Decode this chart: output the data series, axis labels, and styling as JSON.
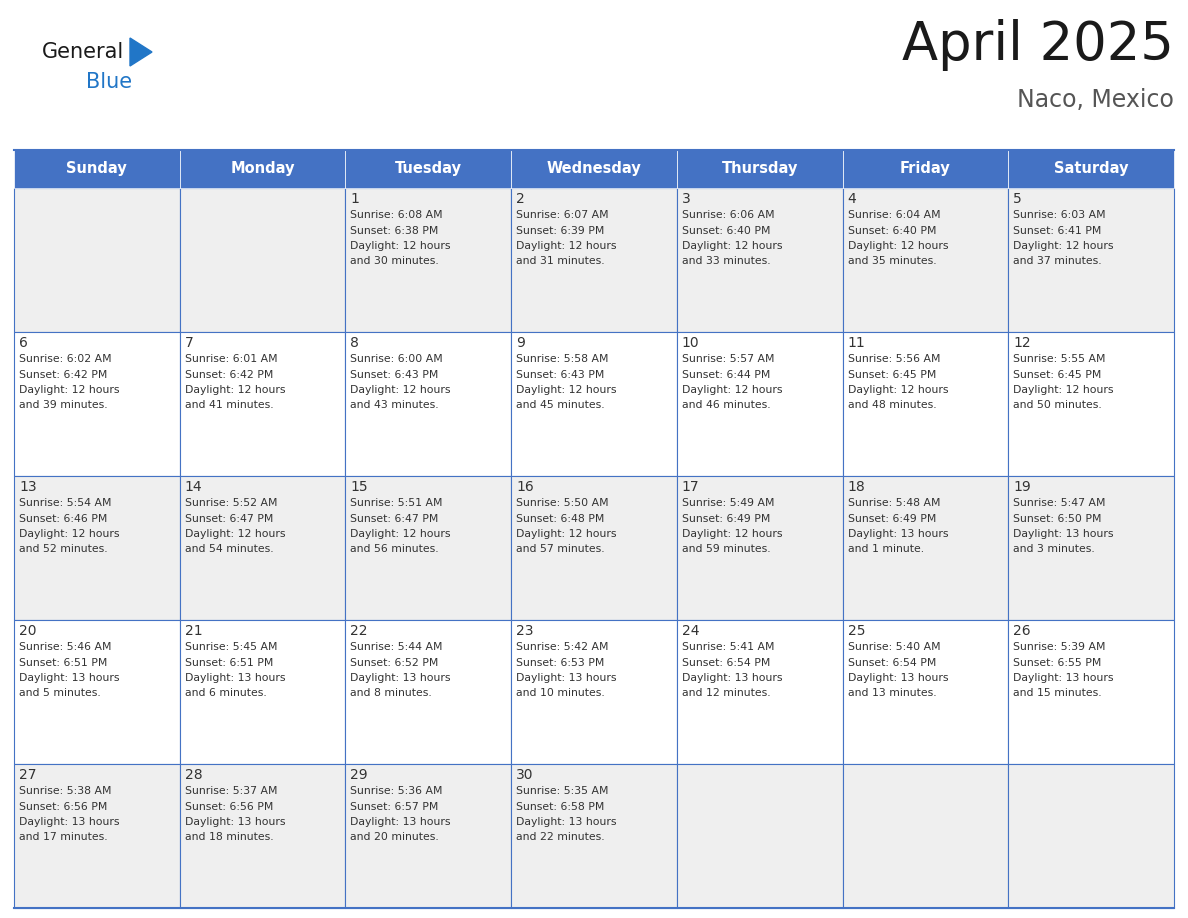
{
  "title": "April 2025",
  "subtitle": "Naco, Mexico",
  "header_color": "#4472C4",
  "header_text_color": "#FFFFFF",
  "grid_line_color": "#4472C4",
  "text_color": "#333333",
  "days_of_week": [
    "Sunday",
    "Monday",
    "Tuesday",
    "Wednesday",
    "Thursday",
    "Friday",
    "Saturday"
  ],
  "logo_general_color": "#1a1a1a",
  "logo_blue_color": "#2176C7",
  "logo_triangle_color": "#2176C7",
  "title_color": "#1a1a1a",
  "subtitle_color": "#555555",
  "row_bg_even": "#FFFFFF",
  "row_bg_odd": "#EFEFEF",
  "calendar_data": [
    [
      {
        "day": "",
        "info": ""
      },
      {
        "day": "",
        "info": ""
      },
      {
        "day": "1",
        "info": "Sunrise: 6:08 AM\nSunset: 6:38 PM\nDaylight: 12 hours\nand 30 minutes."
      },
      {
        "day": "2",
        "info": "Sunrise: 6:07 AM\nSunset: 6:39 PM\nDaylight: 12 hours\nand 31 minutes."
      },
      {
        "day": "3",
        "info": "Sunrise: 6:06 AM\nSunset: 6:40 PM\nDaylight: 12 hours\nand 33 minutes."
      },
      {
        "day": "4",
        "info": "Sunrise: 6:04 AM\nSunset: 6:40 PM\nDaylight: 12 hours\nand 35 minutes."
      },
      {
        "day": "5",
        "info": "Sunrise: 6:03 AM\nSunset: 6:41 PM\nDaylight: 12 hours\nand 37 minutes."
      }
    ],
    [
      {
        "day": "6",
        "info": "Sunrise: 6:02 AM\nSunset: 6:42 PM\nDaylight: 12 hours\nand 39 minutes."
      },
      {
        "day": "7",
        "info": "Sunrise: 6:01 AM\nSunset: 6:42 PM\nDaylight: 12 hours\nand 41 minutes."
      },
      {
        "day": "8",
        "info": "Sunrise: 6:00 AM\nSunset: 6:43 PM\nDaylight: 12 hours\nand 43 minutes."
      },
      {
        "day": "9",
        "info": "Sunrise: 5:58 AM\nSunset: 6:43 PM\nDaylight: 12 hours\nand 45 minutes."
      },
      {
        "day": "10",
        "info": "Sunrise: 5:57 AM\nSunset: 6:44 PM\nDaylight: 12 hours\nand 46 minutes."
      },
      {
        "day": "11",
        "info": "Sunrise: 5:56 AM\nSunset: 6:45 PM\nDaylight: 12 hours\nand 48 minutes."
      },
      {
        "day": "12",
        "info": "Sunrise: 5:55 AM\nSunset: 6:45 PM\nDaylight: 12 hours\nand 50 minutes."
      }
    ],
    [
      {
        "day": "13",
        "info": "Sunrise: 5:54 AM\nSunset: 6:46 PM\nDaylight: 12 hours\nand 52 minutes."
      },
      {
        "day": "14",
        "info": "Sunrise: 5:52 AM\nSunset: 6:47 PM\nDaylight: 12 hours\nand 54 minutes."
      },
      {
        "day": "15",
        "info": "Sunrise: 5:51 AM\nSunset: 6:47 PM\nDaylight: 12 hours\nand 56 minutes."
      },
      {
        "day": "16",
        "info": "Sunrise: 5:50 AM\nSunset: 6:48 PM\nDaylight: 12 hours\nand 57 minutes."
      },
      {
        "day": "17",
        "info": "Sunrise: 5:49 AM\nSunset: 6:49 PM\nDaylight: 12 hours\nand 59 minutes."
      },
      {
        "day": "18",
        "info": "Sunrise: 5:48 AM\nSunset: 6:49 PM\nDaylight: 13 hours\nand 1 minute."
      },
      {
        "day": "19",
        "info": "Sunrise: 5:47 AM\nSunset: 6:50 PM\nDaylight: 13 hours\nand 3 minutes."
      }
    ],
    [
      {
        "day": "20",
        "info": "Sunrise: 5:46 AM\nSunset: 6:51 PM\nDaylight: 13 hours\nand 5 minutes."
      },
      {
        "day": "21",
        "info": "Sunrise: 5:45 AM\nSunset: 6:51 PM\nDaylight: 13 hours\nand 6 minutes."
      },
      {
        "day": "22",
        "info": "Sunrise: 5:44 AM\nSunset: 6:52 PM\nDaylight: 13 hours\nand 8 minutes."
      },
      {
        "day": "23",
        "info": "Sunrise: 5:42 AM\nSunset: 6:53 PM\nDaylight: 13 hours\nand 10 minutes."
      },
      {
        "day": "24",
        "info": "Sunrise: 5:41 AM\nSunset: 6:54 PM\nDaylight: 13 hours\nand 12 minutes."
      },
      {
        "day": "25",
        "info": "Sunrise: 5:40 AM\nSunset: 6:54 PM\nDaylight: 13 hours\nand 13 minutes."
      },
      {
        "day": "26",
        "info": "Sunrise: 5:39 AM\nSunset: 6:55 PM\nDaylight: 13 hours\nand 15 minutes."
      }
    ],
    [
      {
        "day": "27",
        "info": "Sunrise: 5:38 AM\nSunset: 6:56 PM\nDaylight: 13 hours\nand 17 minutes."
      },
      {
        "day": "28",
        "info": "Sunrise: 5:37 AM\nSunset: 6:56 PM\nDaylight: 13 hours\nand 18 minutes."
      },
      {
        "day": "29",
        "info": "Sunrise: 5:36 AM\nSunset: 6:57 PM\nDaylight: 13 hours\nand 20 minutes."
      },
      {
        "day": "30",
        "info": "Sunrise: 5:35 AM\nSunset: 6:58 PM\nDaylight: 13 hours\nand 22 minutes."
      },
      {
        "day": "",
        "info": ""
      },
      {
        "day": "",
        "info": ""
      },
      {
        "day": "",
        "info": ""
      }
    ]
  ]
}
